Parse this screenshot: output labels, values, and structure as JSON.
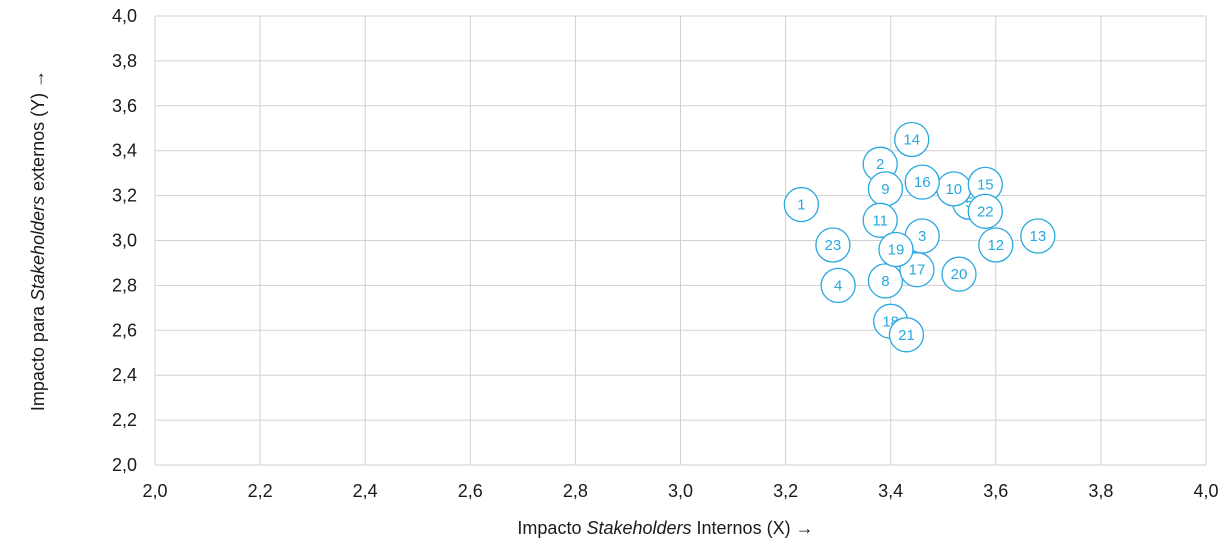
{
  "chart_data": {
    "type": "scatter",
    "x_axis": {
      "label_parts": [
        "Impacto ",
        "Stakeholders",
        "  Internos (X) →"
      ],
      "min": 2.0,
      "max": 4.0,
      "ticks": [
        2.0,
        2.2,
        2.4,
        2.6,
        2.8,
        3.0,
        3.2,
        3.4,
        3.6,
        3.8,
        4.0
      ],
      "tick_labels": [
        "2,0",
        "2,2",
        "2,4",
        "2,6",
        "2,8",
        "3,0",
        "3,2",
        "3,4",
        "3,6",
        "3,8",
        "4,0"
      ]
    },
    "y_axis": {
      "label_parts": [
        "Impacto para ",
        "Stakeholders",
        " externos (Y) →"
      ],
      "min": 2.0,
      "max": 4.0,
      "ticks": [
        2.0,
        2.2,
        2.4,
        2.6,
        2.8,
        3.0,
        3.2,
        3.4,
        3.6,
        3.8,
        4.0
      ],
      "tick_labels": [
        "2,0",
        "2,2",
        "2,4",
        "2,6",
        "2,8",
        "3,0",
        "3,2",
        "3,4",
        "3,6",
        "3,8",
        "4,0"
      ]
    },
    "grid": true,
    "legend": "none",
    "colors": {
      "marker": "#29a8e0",
      "grid": "#d0d0d0",
      "text": "#1a1a1a"
    },
    "points": [
      {
        "label": "1",
        "x": 3.23,
        "y": 3.16
      },
      {
        "label": "2",
        "x": 3.38,
        "y": 3.34
      },
      {
        "label": "3",
        "x": 3.46,
        "y": 3.02
      },
      {
        "label": "4",
        "x": 3.3,
        "y": 2.8
      },
      {
        "label": "5",
        "x": 3.55,
        "y": 3.17
      },
      {
        "label": "8",
        "x": 3.39,
        "y": 2.82
      },
      {
        "label": "9",
        "x": 3.39,
        "y": 3.23
      },
      {
        "label": "10",
        "x": 3.52,
        "y": 3.23
      },
      {
        "label": "11",
        "x": 3.38,
        "y": 3.09
      },
      {
        "label": "12",
        "x": 3.6,
        "y": 2.98
      },
      {
        "label": "13",
        "x": 3.68,
        "y": 3.02
      },
      {
        "label": "14",
        "x": 3.44,
        "y": 3.45
      },
      {
        "label": "15",
        "x": 3.58,
        "y": 3.25
      },
      {
        "label": "16",
        "x": 3.46,
        "y": 3.26
      },
      {
        "label": "17",
        "x": 3.45,
        "y": 2.87
      },
      {
        "label": "18",
        "x": 3.4,
        "y": 2.64
      },
      {
        "label": "19",
        "x": 3.41,
        "y": 2.96
      },
      {
        "label": "20",
        "x": 3.53,
        "y": 2.85
      },
      {
        "label": "21",
        "x": 3.43,
        "y": 2.58
      },
      {
        "label": "22",
        "x": 3.58,
        "y": 3.13
      },
      {
        "label": "23",
        "x": 3.29,
        "y": 2.98
      }
    ]
  }
}
